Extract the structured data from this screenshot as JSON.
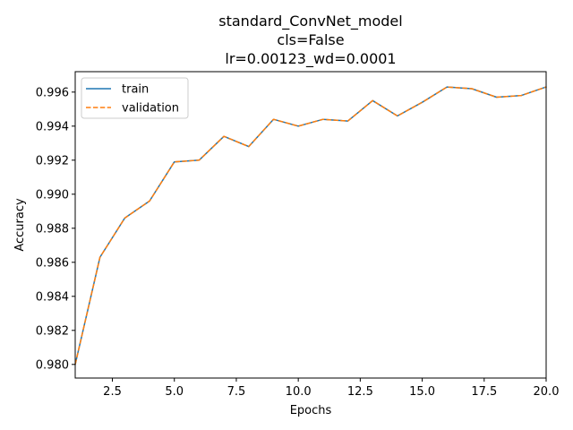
{
  "chart_data": {
    "type": "line",
    "title_lines": [
      "standard_ConvNet_model",
      "cls=False",
      "lr=0.00123_wd=0.0001"
    ],
    "xlabel": "Epochs",
    "ylabel": "Accuracy",
    "xlim": [
      1,
      20
    ],
    "ylim": [
      0.9792,
      0.9972
    ],
    "x_ticks": [
      2.5,
      5.0,
      7.5,
      10.0,
      12.5,
      15.0,
      17.5,
      20.0
    ],
    "x_tick_labels": [
      "2.5",
      "5.0",
      "7.5",
      "10.0",
      "12.5",
      "15.0",
      "17.5",
      "20.0"
    ],
    "y_ticks": [
      0.98,
      0.982,
      0.984,
      0.986,
      0.988,
      0.99,
      0.992,
      0.994,
      0.996
    ],
    "y_tick_labels": [
      "0.980",
      "0.982",
      "0.984",
      "0.986",
      "0.988",
      "0.990",
      "0.992",
      "0.994",
      "0.996"
    ],
    "grid": false,
    "legend_position": "upper-left",
    "x": [
      1,
      2,
      3,
      4,
      5,
      6,
      7,
      8,
      9,
      10,
      11,
      12,
      13,
      14,
      15,
      16,
      17,
      18,
      19,
      20
    ],
    "series": [
      {
        "name": "train",
        "style": "solid",
        "color": "#1f77b4",
        "values": [
          0.98,
          0.9863,
          0.9886,
          0.9896,
          0.9919,
          0.992,
          0.9934,
          0.9928,
          0.9944,
          0.994,
          0.9944,
          0.9943,
          0.9955,
          0.9946,
          0.9954,
          0.9963,
          0.9962,
          0.9957,
          0.9958,
          0.9963
        ]
      },
      {
        "name": "validation",
        "style": "dashed",
        "color": "#ff7f0e",
        "values": [
          0.98,
          0.9863,
          0.9886,
          0.9896,
          0.9919,
          0.992,
          0.9934,
          0.9928,
          0.9944,
          0.994,
          0.9944,
          0.9943,
          0.9955,
          0.9946,
          0.9954,
          0.9963,
          0.9962,
          0.9957,
          0.9958,
          0.9963
        ]
      }
    ]
  }
}
